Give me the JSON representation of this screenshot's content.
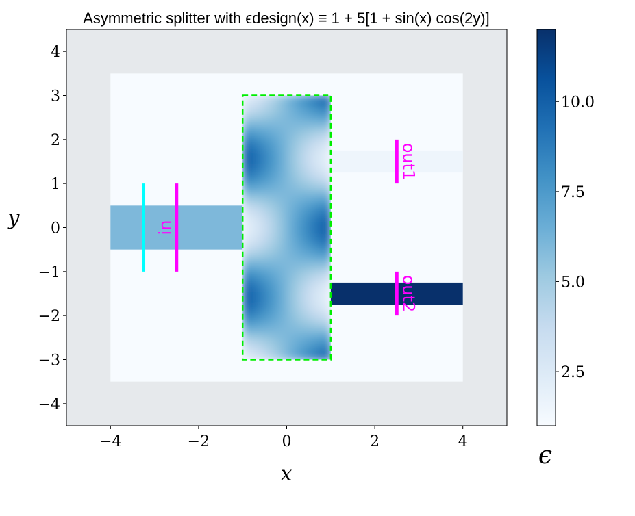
{
  "chart_data": {
    "type": "heatmap",
    "title": "Asymmetric splitter with ϵdesign(x) ≡ 1 + 5[1 + sin(x) cos(2y)]",
    "xlabel": "x",
    "ylabel": "y",
    "xlim": [
      -5,
      5
    ],
    "ylim": [
      -4.5,
      4.5
    ],
    "x_ticks": [
      -4,
      -2,
      0,
      2,
      4
    ],
    "x_tick_labels": [
      "−4",
      "−2",
      "0",
      "2",
      "4"
    ],
    "y_ticks": [
      -4,
      -3,
      -2,
      -1,
      0,
      1,
      2,
      3,
      4
    ],
    "y_tick_labels": [
      "−4",
      "−3",
      "−2",
      "−1",
      "0",
      "1",
      "2",
      "3",
      "4"
    ],
    "colormap": "Blues",
    "colorbar": {
      "label": "ϵ",
      "range": [
        1,
        12
      ],
      "ticks": [
        2.5,
        5.0,
        7.5,
        10.0
      ],
      "tick_labels": [
        "2.5",
        "5.0",
        "7.5",
        "10.0"
      ]
    },
    "background_epsilon": 1,
    "outside_region_color": "#e6e9ec",
    "simulation_box": {
      "x": [
        -4,
        4
      ],
      "y": [
        -3.5,
        3.5
      ]
    },
    "input_waveguide": {
      "x": [
        -4,
        -1
      ],
      "y": [
        -0.5,
        0.5
      ],
      "epsilon": 6
    },
    "output_waveguides": [
      {
        "name": "out1",
        "x": [
          1,
          4
        ],
        "y": [
          1.25,
          1.75
        ],
        "epsilon": 1.5
      },
      {
        "name": "out2",
        "x": [
          1,
          4
        ],
        "y": [
          -1.75,
          -1.25
        ],
        "epsilon": 12
      }
    ],
    "design_region": {
      "x": [
        -1,
        1
      ],
      "y": [
        -3,
        3
      ],
      "epsilon_formula": "1 + 5[1 + sin(x) cos(2y)]",
      "outline_color": "#00ee00"
    },
    "source": {
      "x": -3.25,
      "y": [
        -1,
        1
      ],
      "color": "#00ffff"
    },
    "monitors": [
      {
        "label": "in",
        "x": -2.5,
        "y": [
          -1,
          1
        ],
        "color": "#ff00ff"
      },
      {
        "label": "out1",
        "x": 2.5,
        "y": [
          1,
          2
        ],
        "color": "#ff00ff"
      },
      {
        "label": "out2",
        "x": 2.5,
        "y": [
          -2,
          -1
        ],
        "color": "#ff00ff"
      }
    ]
  }
}
